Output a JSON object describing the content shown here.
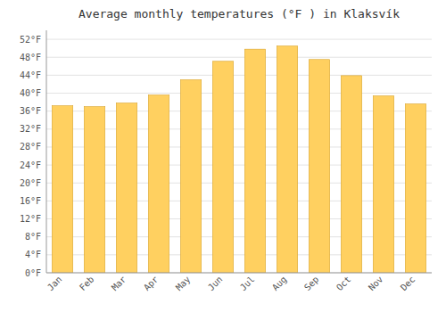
{
  "chart_data": {
    "type": "bar",
    "title": "Average monthly temperatures (°F ) in Klaksvík",
    "categories": [
      "Jan",
      "Feb",
      "Mar",
      "Apr",
      "May",
      "Jun",
      "Jul",
      "Aug",
      "Sep",
      "Oct",
      "Nov",
      "Dec"
    ],
    "values": [
      37.2,
      37.0,
      37.8,
      39.6,
      43.0,
      47.1,
      49.8,
      50.5,
      47.5,
      43.9,
      39.4,
      37.6
    ],
    "color": "#FFD060",
    "ylim": [
      0,
      54
    ],
    "yticks": [
      {
        "value": 0,
        "label": "0°F"
      },
      {
        "value": 4,
        "label": "4°F"
      },
      {
        "value": 8,
        "label": "8°F"
      },
      {
        "value": 12,
        "label": "12°F"
      },
      {
        "value": 16,
        "label": "16°F"
      },
      {
        "value": 20,
        "label": "20°F"
      },
      {
        "value": 24,
        "label": "24°F"
      },
      {
        "value": 28,
        "label": "28°F"
      },
      {
        "value": 32,
        "label": "32°F"
      },
      {
        "value": 36,
        "label": "36°F"
      },
      {
        "value": 40,
        "label": "40°F"
      },
      {
        "value": 44,
        "label": "44°F"
      },
      {
        "value": 48,
        "label": "48°F"
      },
      {
        "value": 52,
        "label": "52°F"
      }
    ],
    "grid": true
  }
}
